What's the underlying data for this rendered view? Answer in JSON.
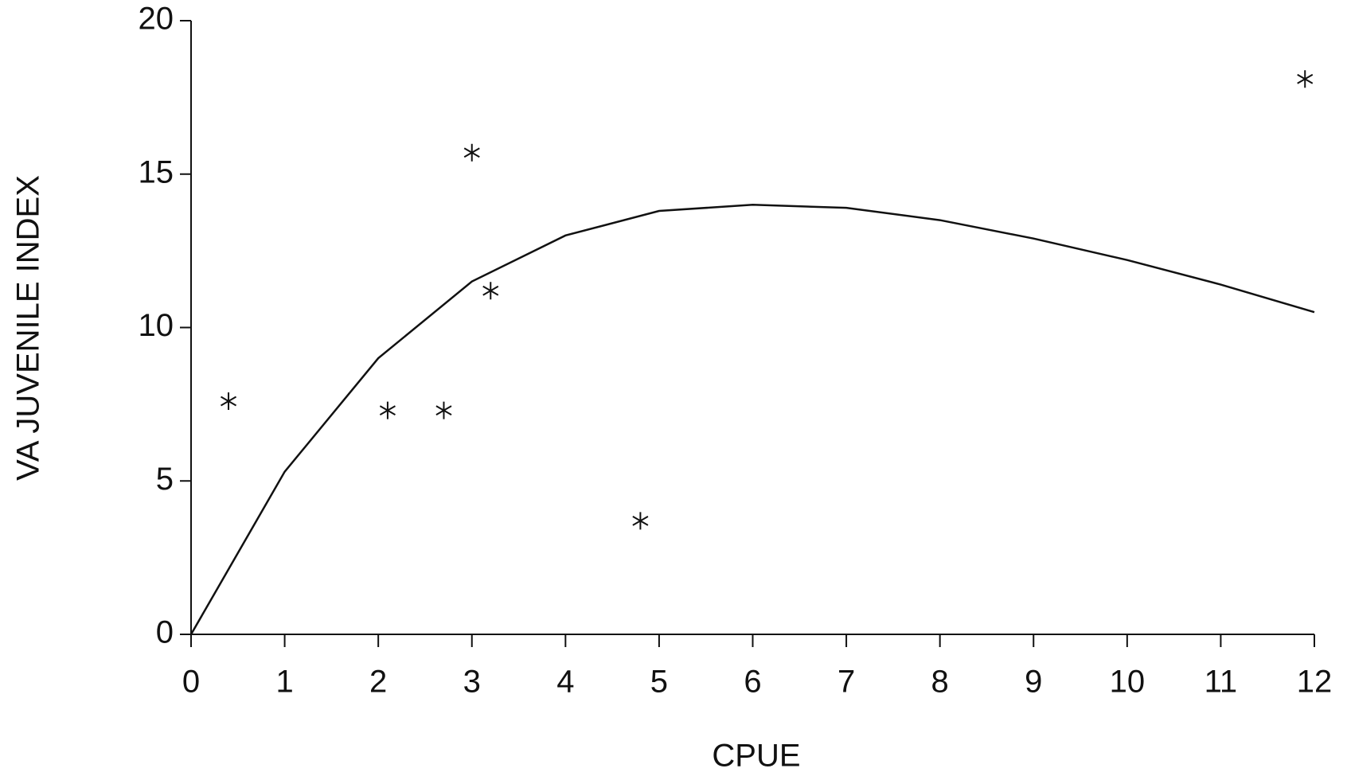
{
  "chart_data": {
    "type": "scatter",
    "x_label": "CPUE",
    "y_label": "VA JUVENILE INDEX",
    "xlim": [
      0,
      12
    ],
    "ylim": [
      0,
      20
    ],
    "xticks": [
      0,
      1,
      2,
      3,
      4,
      5,
      6,
      7,
      8,
      9,
      10,
      11,
      12
    ],
    "yticks": [
      0,
      5,
      10,
      15,
      20
    ],
    "color": "#111111",
    "points": {
      "x": [
        0.4,
        2.1,
        2.7,
        3.0,
        3.2,
        4.8,
        11.9
      ],
      "values": [
        7.6,
        7.3,
        7.3,
        15.7,
        11.2,
        3.7,
        18.1
      ]
    },
    "curve": {
      "x": [
        0,
        1,
        2,
        3,
        4,
        5,
        6,
        7,
        8,
        9,
        10,
        11,
        12
      ],
      "values": [
        0,
        5.3,
        9.0,
        11.5,
        13.0,
        13.8,
        14.0,
        13.9,
        13.5,
        12.9,
        12.2,
        11.4,
        10.5
      ]
    }
  }
}
